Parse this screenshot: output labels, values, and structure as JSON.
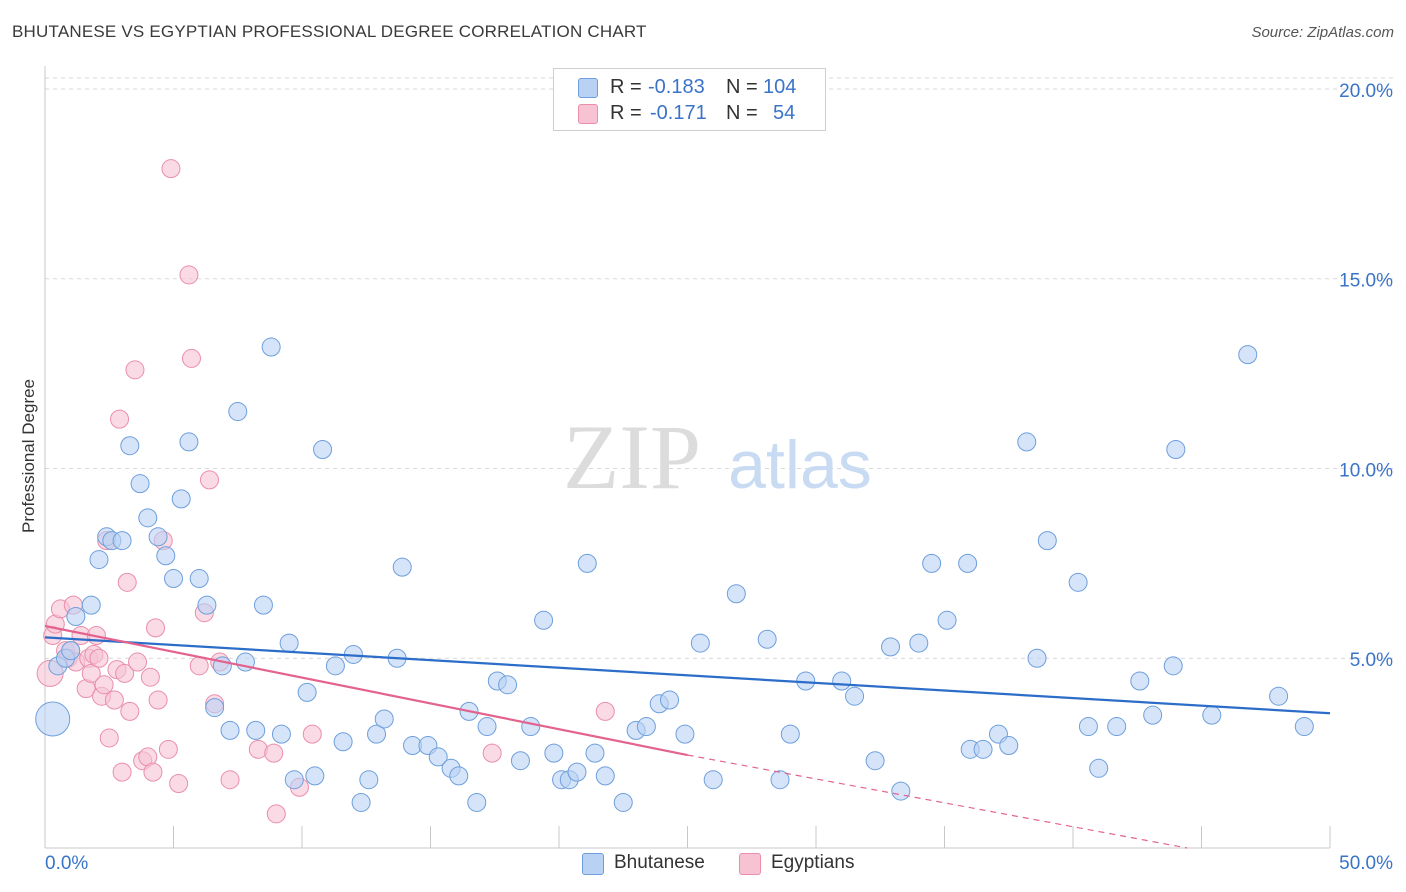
{
  "title": "BHUTANESE VS EGYPTIAN PROFESSIONAL DEGREE CORRELATION CHART",
  "source": "Source: ZipAtlas.com",
  "watermark": {
    "zip": "ZIP",
    "atlas": "atlas"
  },
  "legend": {
    "r_label": "R =",
    "n_label": "N =",
    "rows": [
      {
        "name": "Bhutanese",
        "r": "-0.183",
        "n": "104",
        "color": "#8fb8ea"
      },
      {
        "name": "Egyptians",
        "r": "-0.171",
        "n": "54",
        "color": "#f3a3bd"
      }
    ]
  },
  "colors": {
    "blue_fill": "#b9d2f3",
    "blue_stroke": "#6e9fdc",
    "blue_line": "#2c6dc9",
    "pink_fill": "#f7c3d3",
    "pink_stroke": "#ea8eab",
    "pink_line": "#e3638e",
    "axis_text": "#3a74c8",
    "grid": "#d9d9d9"
  },
  "chart_data": {
    "type": "scatter",
    "title": "BHUTANESE VS EGYPTIAN PROFESSIONAL DEGREE CORRELATION CHART",
    "xlabel": "",
    "ylabel": "Professional Degree",
    "xlim": [
      0,
      50
    ],
    "ylim": [
      0,
      20.5
    ],
    "x_tick_labels": [
      "0.0%",
      "50.0%"
    ],
    "y_ticks": [
      5,
      10,
      15,
      20
    ],
    "y_tick_labels": [
      "5.0%",
      "10.0%",
      "15.0%",
      "20.0%"
    ],
    "grid": "horizontal dashed",
    "legend_position": "bottom-center",
    "series": [
      {
        "name": "Bhutanese",
        "r": -0.183,
        "n": 104,
        "trend": {
          "x": [
            0,
            50
          ],
          "y": [
            5.55,
            3.55
          ],
          "dashed_from": null
        },
        "points": [
          [
            0.3,
            3.4
          ],
          [
            0.5,
            4.8
          ],
          [
            0.8,
            5.0
          ],
          [
            1.0,
            5.2
          ],
          [
            1.2,
            6.1
          ],
          [
            1.8,
            6.4
          ],
          [
            2.1,
            7.6
          ],
          [
            2.4,
            8.2
          ],
          [
            2.6,
            8.1
          ],
          [
            3.0,
            8.1
          ],
          [
            3.3,
            10.6
          ],
          [
            3.7,
            9.6
          ],
          [
            4.0,
            8.7
          ],
          [
            4.4,
            8.2
          ],
          [
            4.7,
            7.7
          ],
          [
            5.0,
            7.1
          ],
          [
            5.3,
            9.2
          ],
          [
            5.6,
            10.7
          ],
          [
            6.0,
            7.1
          ],
          [
            6.3,
            6.4
          ],
          [
            6.6,
            3.7
          ],
          [
            6.9,
            4.8
          ],
          [
            7.2,
            3.1
          ],
          [
            7.5,
            11.5
          ],
          [
            7.8,
            4.9
          ],
          [
            8.2,
            3.1
          ],
          [
            8.5,
            6.4
          ],
          [
            8.8,
            13.2
          ],
          [
            9.2,
            3.0
          ],
          [
            9.5,
            5.4
          ],
          [
            9.7,
            1.8
          ],
          [
            10.2,
            4.1
          ],
          [
            10.5,
            1.9
          ],
          [
            10.8,
            10.5
          ],
          [
            11.3,
            4.8
          ],
          [
            11.6,
            2.8
          ],
          [
            12.0,
            5.1
          ],
          [
            12.3,
            1.2
          ],
          [
            12.6,
            1.8
          ],
          [
            12.9,
            3.0
          ],
          [
            13.2,
            3.4
          ],
          [
            13.7,
            5.0
          ],
          [
            13.9,
            7.4
          ],
          [
            14.3,
            2.7
          ],
          [
            14.9,
            2.7
          ],
          [
            15.3,
            2.4
          ],
          [
            15.8,
            2.1
          ],
          [
            16.1,
            1.9
          ],
          [
            16.5,
            3.6
          ],
          [
            16.8,
            1.2
          ],
          [
            17.2,
            3.2
          ],
          [
            17.6,
            4.4
          ],
          [
            18.0,
            4.3
          ],
          [
            18.5,
            2.3
          ],
          [
            18.9,
            3.2
          ],
          [
            19.4,
            6.0
          ],
          [
            19.8,
            2.5
          ],
          [
            20.1,
            1.8
          ],
          [
            20.4,
            1.8
          ],
          [
            20.7,
            2.0
          ],
          [
            21.1,
            7.5
          ],
          [
            21.4,
            2.5
          ],
          [
            21.8,
            1.9
          ],
          [
            22.5,
            1.2
          ],
          [
            23.0,
            3.1
          ],
          [
            23.4,
            3.2
          ],
          [
            23.9,
            3.8
          ],
          [
            24.3,
            3.9
          ],
          [
            24.9,
            3.0
          ],
          [
            25.5,
            5.4
          ],
          [
            26.0,
            1.8
          ],
          [
            26.9,
            6.7
          ],
          [
            28.1,
            5.5
          ],
          [
            28.6,
            1.8
          ],
          [
            29.0,
            3.0
          ],
          [
            29.6,
            4.4
          ],
          [
            31.0,
            4.4
          ],
          [
            31.5,
            4.0
          ],
          [
            32.3,
            2.3
          ],
          [
            32.9,
            5.3
          ],
          [
            33.3,
            1.5
          ],
          [
            34.0,
            5.4
          ],
          [
            34.5,
            7.5
          ],
          [
            35.1,
            6.0
          ],
          [
            35.9,
            7.5
          ],
          [
            36.0,
            2.6
          ],
          [
            36.5,
            2.6
          ],
          [
            37.1,
            3.0
          ],
          [
            37.5,
            2.7
          ],
          [
            38.2,
            10.7
          ],
          [
            38.6,
            5.0
          ],
          [
            39.0,
            8.1
          ],
          [
            40.2,
            7.0
          ],
          [
            40.6,
            3.2
          ],
          [
            41.0,
            2.1
          ],
          [
            41.7,
            3.2
          ],
          [
            42.6,
            4.4
          ],
          [
            43.1,
            3.5
          ],
          [
            43.9,
            4.8
          ],
          [
            44.0,
            10.5
          ],
          [
            45.4,
            3.5
          ],
          [
            46.8,
            13.0
          ],
          [
            48.0,
            4.0
          ],
          [
            49.0,
            3.2
          ]
        ]
      },
      {
        "name": "Egyptians",
        "r": -0.171,
        "n": 54,
        "trend": {
          "x": [
            0,
            25,
            50
          ],
          "y": [
            5.85,
            2.45,
            -0.7
          ],
          "dashed_from": 25
        },
        "points": [
          [
            0.2,
            4.6
          ],
          [
            0.3,
            5.6
          ],
          [
            0.4,
            5.9
          ],
          [
            0.6,
            6.3
          ],
          [
            0.8,
            5.2
          ],
          [
            0.9,
            5.0
          ],
          [
            1.0,
            5.2
          ],
          [
            1.1,
            6.4
          ],
          [
            1.2,
            4.9
          ],
          [
            1.4,
            5.6
          ],
          [
            1.6,
            4.2
          ],
          [
            1.7,
            5.0
          ],
          [
            1.8,
            4.6
          ],
          [
            1.9,
            5.1
          ],
          [
            2.0,
            5.6
          ],
          [
            2.1,
            5.0
          ],
          [
            2.2,
            4.0
          ],
          [
            2.3,
            4.3
          ],
          [
            2.4,
            8.1
          ],
          [
            2.5,
            2.9
          ],
          [
            2.7,
            3.9
          ],
          [
            2.8,
            4.7
          ],
          [
            2.9,
            11.3
          ],
          [
            3.0,
            2.0
          ],
          [
            3.1,
            4.6
          ],
          [
            3.2,
            7.0
          ],
          [
            3.3,
            3.6
          ],
          [
            3.5,
            12.6
          ],
          [
            3.6,
            4.9
          ],
          [
            3.8,
            2.3
          ],
          [
            4.0,
            2.4
          ],
          [
            4.1,
            4.5
          ],
          [
            4.2,
            2.0
          ],
          [
            4.3,
            5.8
          ],
          [
            4.4,
            3.9
          ],
          [
            4.6,
            8.1
          ],
          [
            4.8,
            2.6
          ],
          [
            4.9,
            17.9
          ],
          [
            5.2,
            1.7
          ],
          [
            5.6,
            15.1
          ],
          [
            5.7,
            12.9
          ],
          [
            6.0,
            4.8
          ],
          [
            6.2,
            6.2
          ],
          [
            6.4,
            9.7
          ],
          [
            6.6,
            3.8
          ],
          [
            6.8,
            4.9
          ],
          [
            7.2,
            1.8
          ],
          [
            8.3,
            2.6
          ],
          [
            8.9,
            2.5
          ],
          [
            9.0,
            0.9
          ],
          [
            9.9,
            1.6
          ],
          [
            10.4,
            3.0
          ],
          [
            17.4,
            2.5
          ],
          [
            21.8,
            3.6
          ]
        ]
      }
    ]
  },
  "bubbles": [
    {
      "series": "Bhutanese",
      "x": 0.3,
      "y": 3.4,
      "r": 17
    },
    {
      "series": "Egyptians",
      "x": 0.2,
      "y": 4.6,
      "r": 13
    }
  ]
}
